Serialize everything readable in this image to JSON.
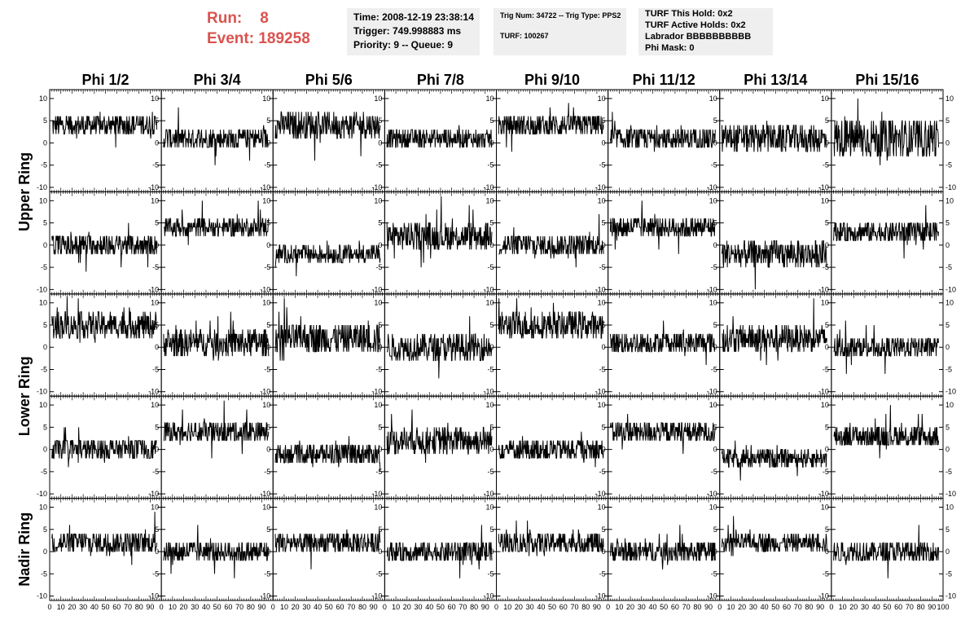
{
  "header": {
    "run_label": "Run:",
    "run_value": "8",
    "event_label": "Event:",
    "event_value": "189258"
  },
  "info1": {
    "time": "Time: 2008-12-19 23:38:14",
    "trigger": "Trigger: 749.998883 ms",
    "priority": "Priority: 9 -- Queue: 9"
  },
  "info2": {
    "trig": "Trig Num: 34722 -- Trig Type: PPS2",
    "turf": "TURF: 100267"
  },
  "info3": {
    "hold": "TURF This Hold: 0x2",
    "active": "TURF Active Holds: 0x2",
    "labrador": "Labrador BBBBBBBBBB",
    "mask": "Phi Mask: 0"
  },
  "colors": {
    "accent": "#d9534f",
    "panel_bg": "#efefef",
    "trace": "#000000"
  },
  "chart_data": {
    "type": "line",
    "columns": [
      "Phi 1/2",
      "Phi 3/4",
      "Phi 5/6",
      "Phi 7/8",
      "Phi 9/10",
      "Phi 11/12",
      "Phi 13/14",
      "Phi 15/16"
    ],
    "ring_labels": [
      "Upper Ring",
      "Lower Ring",
      "Nadir Ring"
    ],
    "rows_per_ring": [
      2,
      2,
      1
    ],
    "xlim": [
      0,
      100
    ],
    "ylim": [
      -11,
      12
    ],
    "yticks": [
      -10,
      -5,
      0,
      5,
      10
    ],
    "xtick_labels": [
      "0",
      "10",
      "20",
      "30",
      "40",
      "50",
      "60",
      "70",
      "80",
      "90",
      "100"
    ],
    "grid": false,
    "baseline_levels": [
      [
        4,
        1,
        4,
        1,
        4,
        1,
        1,
        1
      ],
      [
        0,
        4,
        -2,
        2,
        0,
        4,
        -2,
        3
      ],
      [
        5,
        1,
        2,
        0,
        5,
        1,
        2,
        0
      ],
      [
        0,
        4,
        -1,
        2,
        0,
        4,
        -2,
        3
      ],
      [
        2,
        0,
        2,
        0,
        2,
        0,
        2,
        0
      ]
    ],
    "noise_amplitude": [
      [
        2.5,
        2.5,
        3,
        2,
        2.5,
        2.5,
        3,
        4.5
      ],
      [
        2.5,
        2,
        2,
        3,
        2.5,
        2.5,
        3,
        2.5
      ],
      [
        3,
        3,
        3.5,
        3,
        3,
        2.5,
        3,
        2.5
      ],
      [
        2.5,
        2.5,
        2.5,
        3,
        2.5,
        2.5,
        2,
        2.5
      ],
      [
        2.5,
        2.5,
        2.5,
        2.5,
        2.5,
        2.5,
        2,
        2.5
      ]
    ],
    "samples_per_trace": 256
  }
}
